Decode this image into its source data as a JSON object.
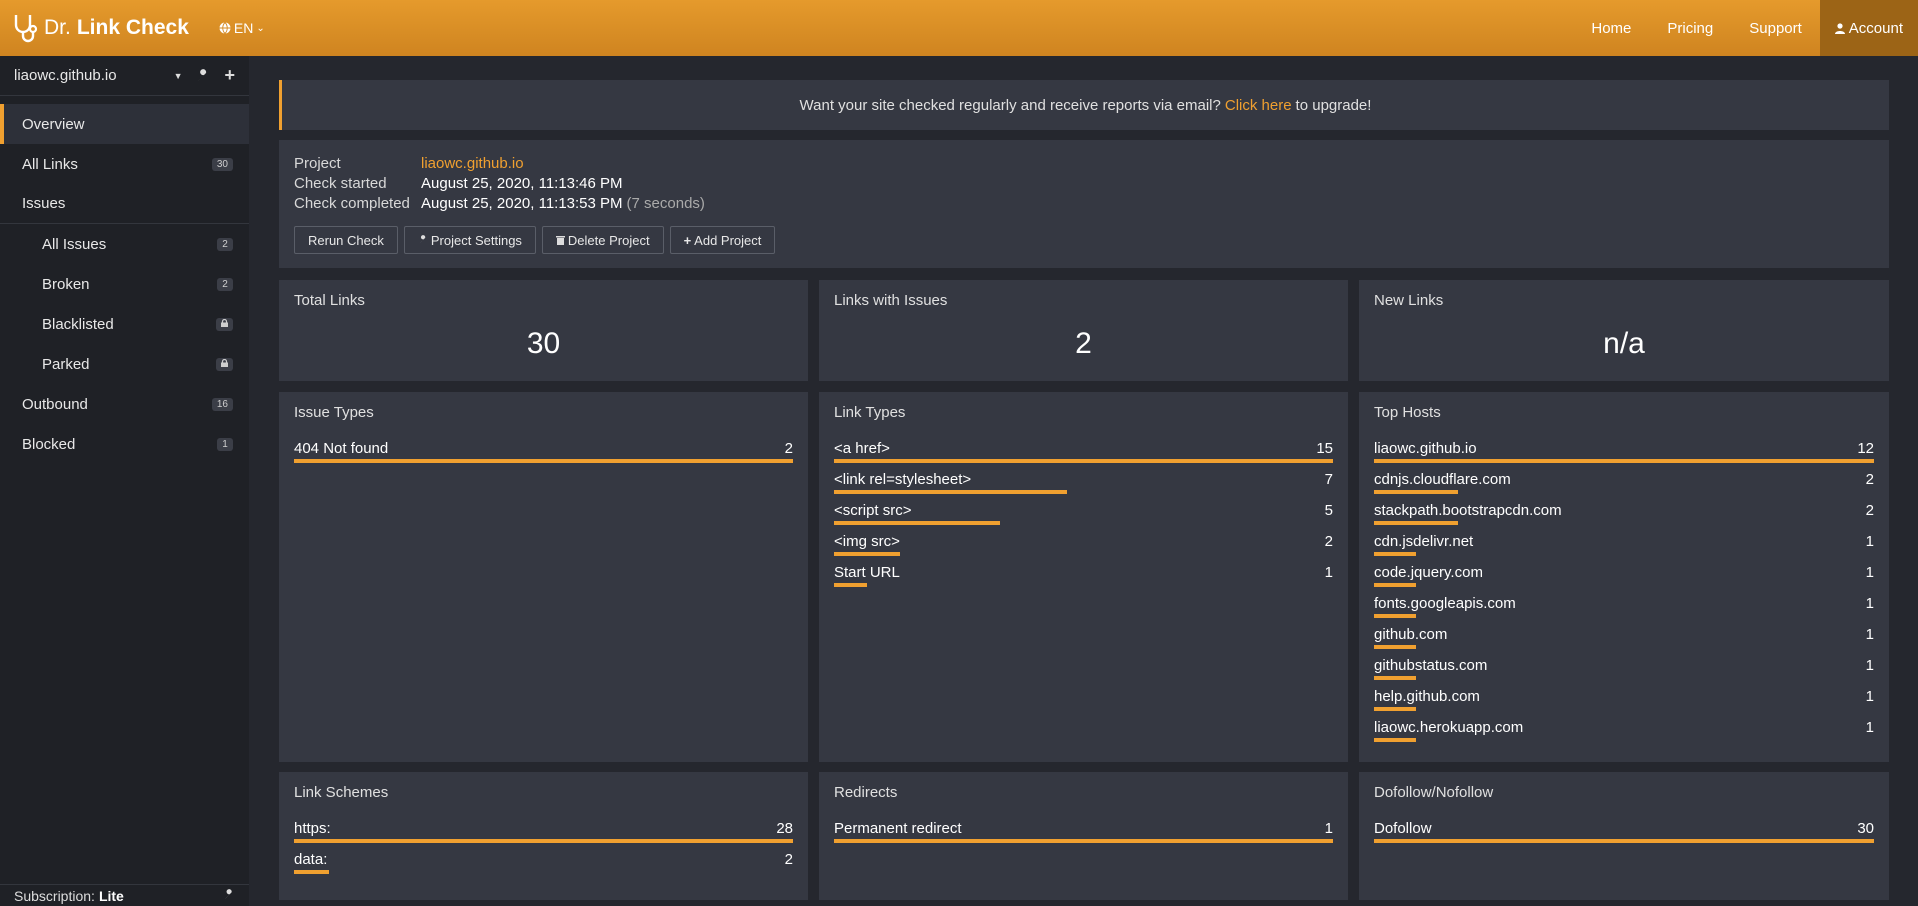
{
  "header": {
    "brand_prefix": "Dr.",
    "brand_name": "Link Check",
    "lang": "EN",
    "nav": [
      "Home",
      "Pricing",
      "Support"
    ],
    "account": "Account",
    "accent": "#e59a2c"
  },
  "sidebar": {
    "project": "liaowc.github.io",
    "items": [
      {
        "label": "Overview",
        "badge": ""
      },
      {
        "label": "All Links",
        "badge": "30"
      },
      {
        "label": "Issues",
        "badge": ""
      },
      {
        "label": "All Issues",
        "badge": "2"
      },
      {
        "label": "Broken",
        "badge": "2"
      },
      {
        "label": "Blacklisted",
        "badge": "lock-icon"
      },
      {
        "label": "Parked",
        "badge": "lock-icon"
      },
      {
        "label": "Outbound",
        "badge": "16"
      },
      {
        "label": "Blocked",
        "badge": "1"
      }
    ],
    "subscription_label": "Subscription:",
    "subscription_value": "Lite"
  },
  "banner": {
    "text_before": "Want your site checked regularly and receive reports via email?",
    "link": "Click here",
    "text_after": "to upgrade!"
  },
  "project": {
    "project_label": "Project",
    "project_value": "liaowc.github.io",
    "started_label": "Check started",
    "started_value": "August 25, 2020, 11:13:46 PM",
    "completed_label": "Check completed",
    "completed_value": "August 25, 2020, 11:13:53 PM",
    "duration": "(7 seconds)",
    "buttons": [
      "Rerun Check",
      "Project Settings",
      "Delete Project",
      "Add Project"
    ]
  },
  "stats": {
    "total_links_label": "Total Links",
    "total_links": "30",
    "issues_label": "Links with Issues",
    "issues": "2",
    "new_links_label": "New Links",
    "new_links": "n/a"
  },
  "issue_types": {
    "title": "Issue Types",
    "items": [
      {
        "label": "404 Not found",
        "value": 2,
        "fraction": 1.0
      }
    ]
  },
  "link_types": {
    "title": "Link Types",
    "items": [
      {
        "label": "<a href>",
        "value": 15,
        "fraction": 1.0
      },
      {
        "label": "<link rel=stylesheet>",
        "value": 7,
        "fraction": 0.467
      },
      {
        "label": "<script src>",
        "value": 5,
        "fraction": 0.333
      },
      {
        "label": "<img src>",
        "value": 2,
        "fraction": 0.133
      },
      {
        "label": "Start URL",
        "value": 1,
        "fraction": 0.067
      }
    ]
  },
  "top_hosts": {
    "title": "Top Hosts",
    "items": [
      {
        "label": "liaowc.github.io",
        "value": 12,
        "fraction": 1.0
      },
      {
        "label": "cdnjs.cloudflare.com",
        "value": 2,
        "fraction": 0.167
      },
      {
        "label": "stackpath.bootstrapcdn.com",
        "value": 2,
        "fraction": 0.167
      },
      {
        "label": "cdn.jsdelivr.net",
        "value": 1,
        "fraction": 0.083
      },
      {
        "label": "code.jquery.com",
        "value": 1,
        "fraction": 0.083
      },
      {
        "label": "fonts.googleapis.com",
        "value": 1,
        "fraction": 0.083
      },
      {
        "label": "github.com",
        "value": 1,
        "fraction": 0.083
      },
      {
        "label": "githubstatus.com",
        "value": 1,
        "fraction": 0.083
      },
      {
        "label": "help.github.com",
        "value": 1,
        "fraction": 0.083
      },
      {
        "label": "liaowc.herokuapp.com",
        "value": 1,
        "fraction": 0.083
      }
    ]
  },
  "link_schemes": {
    "title": "Link Schemes",
    "items": [
      {
        "label": "https:",
        "value": 28,
        "fraction": 1.0
      },
      {
        "label": "data:",
        "value": 2,
        "fraction": 0.071
      }
    ]
  },
  "redirects": {
    "title": "Redirects",
    "items": [
      {
        "label": "Permanent redirect",
        "value": 1,
        "fraction": 1.0
      }
    ]
  },
  "dofollow": {
    "title": "Dofollow/Nofollow",
    "items": [
      {
        "label": "Dofollow",
        "value": 30,
        "fraction": 1.0
      }
    ]
  }
}
